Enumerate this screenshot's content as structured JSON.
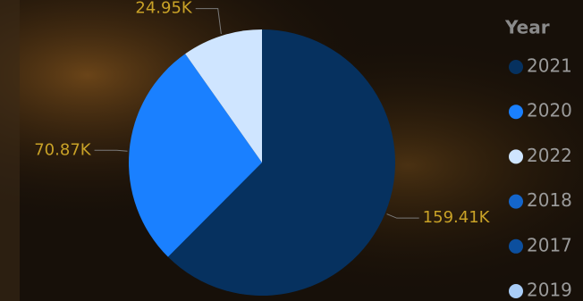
{
  "chart_data": {
    "type": "pie",
    "legend_title": "Year",
    "categories": [
      "2021",
      "2020",
      "2022",
      "2018",
      "2017",
      "2019"
    ],
    "values": [
      159410,
      70870,
      24950,
      0,
      0,
      0
    ],
    "value_labels": [
      "159.41K",
      "70.87K",
      "24.95K",
      null,
      null,
      null
    ],
    "colors": [
      "#06315f",
      "#1a80ff",
      "#cfe5ff",
      "#1466cc",
      "#0c4f9e",
      "#a9cdf7"
    ],
    "label_color": "#c9a227",
    "legend_position": "right"
  }
}
